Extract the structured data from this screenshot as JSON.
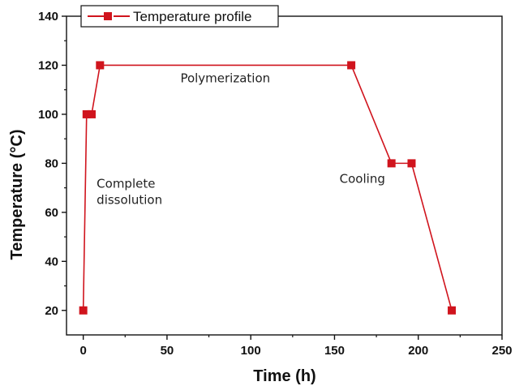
{
  "chart_data": {
    "type": "line",
    "xlabel": "Time (h)",
    "ylabel": "Temperature (°C)",
    "xlim": [
      -10,
      250
    ],
    "ylim": [
      10,
      140
    ],
    "xticks": [
      0,
      50,
      100,
      150,
      200,
      250
    ],
    "yticks": [
      20,
      40,
      60,
      80,
      100,
      120,
      140
    ],
    "grid": false,
    "legend_position": "top-left",
    "series": [
      {
        "name": "Temperature profile",
        "color": "#d0141d",
        "marker": "square",
        "x": [
          0,
          2,
          5,
          10,
          160,
          184,
          196,
          220
        ],
        "y": [
          20,
          100,
          100,
          120,
          120,
          80,
          80,
          20
        ]
      }
    ],
    "annotations": [
      {
        "lines": [
          "Complete",
          "dissolution"
        ],
        "x": 8,
        "y": 70
      },
      {
        "lines": [
          "Polymerization"
        ],
        "x": 58,
        "y": 113
      },
      {
        "lines": [
          "Cooling"
        ],
        "x": 153,
        "y": 72
      }
    ]
  }
}
